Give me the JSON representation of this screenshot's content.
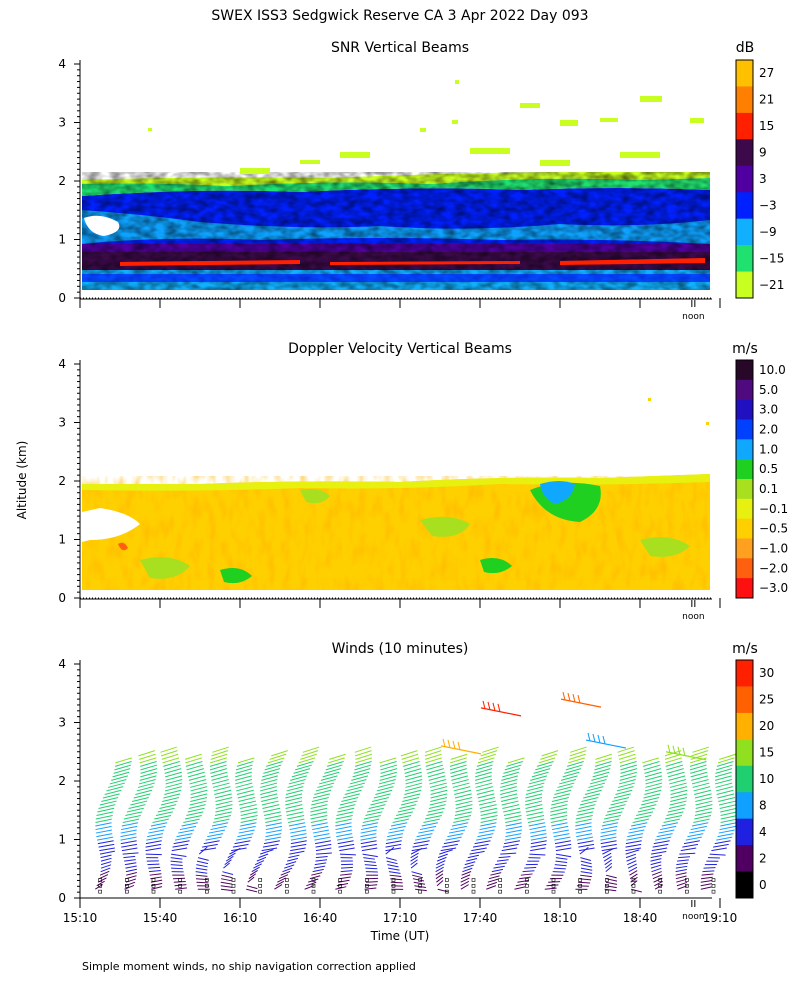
{
  "title": "SWEX ISS3 Sedgwick Reserve CA   3 Apr 2022 Day 093",
  "ylabel": "Altitude (km)",
  "xlabel": "Time (UT)",
  "footnote": "Simple moment winds, no ship navigation correction applied",
  "noon_label": "noon",
  "x_ticks": [
    "15:10",
    "15:40",
    "16:10",
    "16:40",
    "17:10",
    "17:40",
    "18:10",
    "18:40",
    "19:10"
  ],
  "y_ticks": [
    "0",
    "1",
    "2",
    "3",
    "4"
  ],
  "chart_data": [
    {
      "type": "heatmap",
      "title": "SNR Vertical Beams",
      "unit": "dB",
      "ylim": [
        0,
        4
      ],
      "xrange": [
        "15:10",
        "19:10"
      ],
      "colorbar": {
        "labels": [
          "27",
          "21",
          "15",
          "9",
          "3",
          "−3",
          "−9",
          "−15",
          "−21"
        ],
        "colors": [
          "#ffc000",
          "#ff8000",
          "#ff2000",
          "#3c0a4a",
          "#5000a0",
          "#0020ff",
          "#10b0ff",
          "#20e070",
          "#c8ff20"
        ]
      },
      "features": "Strong band (~9 to 21 dB) near 0.5-0.7 km; -3 to -15 dB from 0.8 to 2 km; sparse returns above 2 km up to ~3.4 km"
    },
    {
      "type": "heatmap",
      "title": "Doppler Velocity Vertical Beams",
      "unit": "m/s",
      "ylim": [
        0,
        4
      ],
      "xrange": [
        "15:10",
        "19:10"
      ],
      "colorbar": {
        "labels": [
          "10.0",
          "5.0",
          "3.0",
          "2.0",
          "1.0",
          "0.5",
          "0.1",
          "−0.1",
          "−0.5",
          "−1.0",
          "−2.0",
          "−3.0"
        ],
        "colors": [
          "#280828",
          "#500a80",
          "#2010c0",
          "#0040ff",
          "#10a8ff",
          "#20d020",
          "#a8e020",
          "#e8f010",
          "#ffd000",
          "#ffa020",
          "#ff6010",
          "#ff1010"
        ]
      },
      "features": "Mostly -0.1 to -1.0 m/s (yellow-orange) from 0.1 to 2 km; green/blue patches (0.5-2.0 m/s) near 18:00 at 1.5-2 km"
    },
    {
      "type": "barbs",
      "title": "Winds (10 minutes)",
      "unit": "m/s",
      "ylim": [
        0,
        4
      ],
      "xrange": [
        "15:10",
        "19:10"
      ],
      "interval_minutes": 10,
      "colorbar": {
        "labels": [
          "30",
          "25",
          "20",
          "15",
          "10",
          "8",
          "4",
          "2",
          "0"
        ],
        "colors": [
          "#ff2000",
          "#ff6000",
          "#ffb000",
          "#90e020",
          "#20d070",
          "#10a0ff",
          "#2020e0",
          "#500060",
          "#000000"
        ]
      },
      "features": "Wind speed increases with altitude: 2-8 m/s below 1 km, 10-15 m/s from 1 to 2.4 km, 20-25 m/s near 3.2 km around 17:50-18:20"
    }
  ]
}
